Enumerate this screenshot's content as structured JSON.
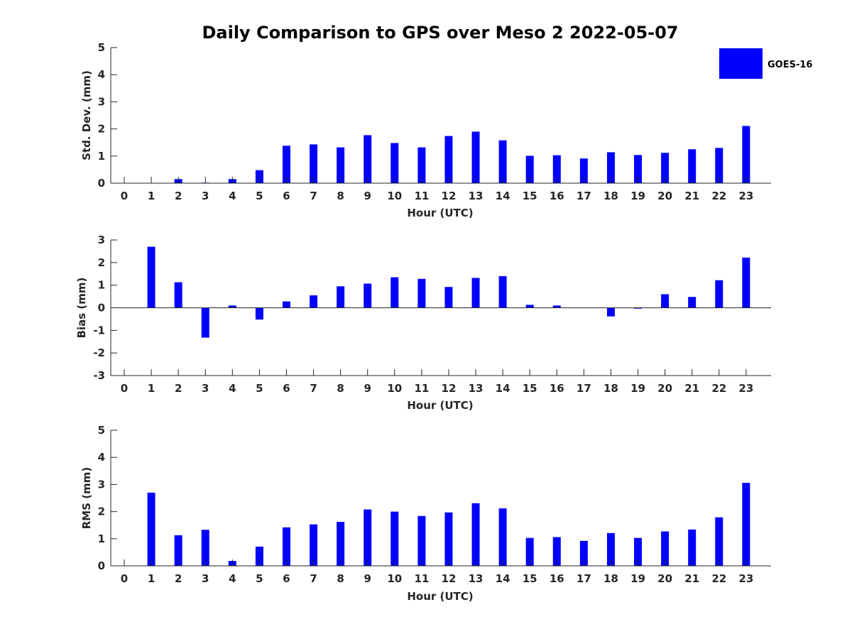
{
  "chart_data": {
    "title": "Daily Comparison to GPS over Meso 2 2022-05-07",
    "legend": {
      "label": "GOES-16",
      "color": "#0000ff",
      "placement": "top-right"
    },
    "type": "bar",
    "categories": [
      "0",
      "1",
      "2",
      "3",
      "4",
      "5",
      "6",
      "7",
      "8",
      "9",
      "10",
      "11",
      "12",
      "13",
      "14",
      "15",
      "16",
      "17",
      "18",
      "19",
      "20",
      "21",
      "22",
      "23"
    ],
    "panels": [
      {
        "ylabel": "Std. Dev. (mm)",
        "xlabel": "Hour (UTC)",
        "ylim": [
          0,
          5
        ],
        "yticks": [
          "0",
          "1",
          "2",
          "3",
          "4",
          "5"
        ],
        "values": [
          0,
          0,
          0.15,
          0.02,
          0.15,
          0.48,
          1.38,
          1.43,
          1.32,
          1.77,
          1.48,
          1.32,
          1.74,
          1.9,
          1.58,
          1.01,
          1.03,
          0.91,
          1.14,
          1.04,
          1.12,
          1.25,
          1.3,
          2.11
        ]
      },
      {
        "ylabel": "Bias (mm)",
        "xlabel": "Hour (UTC)",
        "ylim": [
          -3,
          3
        ],
        "yticks": [
          "-3",
          "-2",
          "-1",
          "0",
          "1",
          "2",
          "3"
        ],
        "values": [
          0,
          2.7,
          1.13,
          -1.32,
          0.1,
          -0.52,
          0.28,
          0.55,
          0.95,
          1.07,
          1.35,
          1.28,
          0.92,
          1.32,
          1.4,
          0.13,
          0.1,
          0,
          -0.38,
          -0.04,
          0.6,
          0.48,
          1.22,
          2.22
        ]
      },
      {
        "ylabel": "RMS (mm)",
        "xlabel": "Hour (UTC)",
        "ylim": [
          0,
          5
        ],
        "yticks": [
          "0",
          "1",
          "2",
          "3",
          "4",
          "5"
        ],
        "values": [
          0,
          2.7,
          1.13,
          1.33,
          0.18,
          0.71,
          1.42,
          1.53,
          1.62,
          2.08,
          2.0,
          1.84,
          1.97,
          2.31,
          2.12,
          1.03,
          1.06,
          0.92,
          1.21,
          1.03,
          1.27,
          1.34,
          1.79,
          3.06
        ]
      }
    ]
  }
}
